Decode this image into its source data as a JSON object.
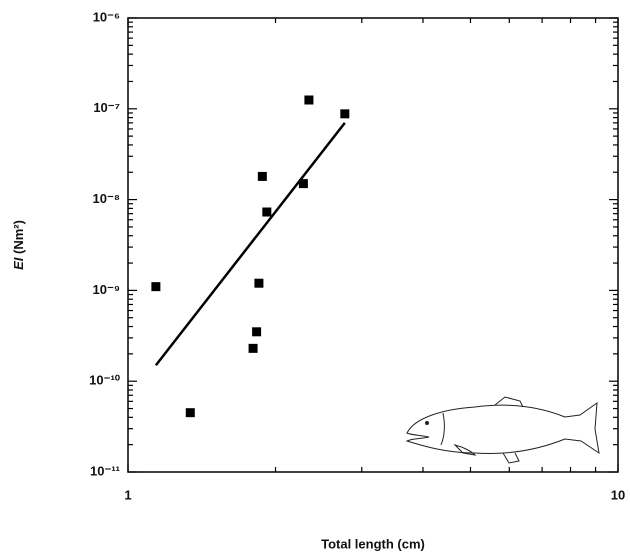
{
  "chart_data": {
    "type": "scatter",
    "xlabel": "Total length (cm)",
    "ylabel": {
      "symbol": "EI",
      "unit": "(Nm²)"
    },
    "xscale": "log",
    "yscale": "log",
    "xlim": [
      1,
      10
    ],
    "ylim": [
      1e-11,
      1e-06
    ],
    "xticks": [
      1,
      10
    ],
    "yticks": [
      {
        "value": 1e-11,
        "label": "10⁻¹¹"
      },
      {
        "value": 1e-10,
        "label": "10⁻¹⁰"
      },
      {
        "value": 1e-09,
        "label": "10⁻⁹"
      },
      {
        "value": 1e-08,
        "label": "10⁻⁸"
      },
      {
        "value": 1e-07,
        "label": "10⁻⁷"
      },
      {
        "value": 1e-06,
        "label": "10⁻⁶"
      }
    ],
    "color": "#000000",
    "x": [
      1.14,
      1.34,
      1.8,
      1.83,
      1.85,
      1.88,
      1.92,
      2.28,
      2.34,
      2.77
    ],
    "values": [
      1.1e-09,
      4.5e-11,
      2.3e-10,
      3.5e-10,
      1.2e-09,
      1.8e-08,
      7.3e-09,
      1.5e-08,
      1.25e-07,
      8.8e-08
    ],
    "fit": {
      "x": [
        1.14,
        2.77
      ],
      "values": [
        1.5e-10,
        7e-08
      ]
    }
  }
}
